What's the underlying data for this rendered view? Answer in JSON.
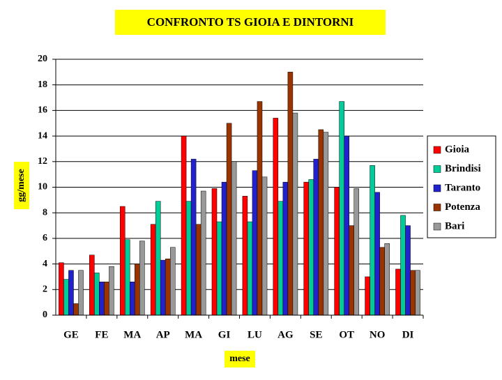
{
  "chart_data": {
    "type": "bar",
    "title": "CONFRONTO  TS  GIOIA  E  DINTORNI",
    "xlabel": "mese",
    "ylabel": "gg/mese",
    "categories": [
      "GE",
      "FE",
      "MA",
      "AP",
      "MA",
      "GI",
      "LU",
      "AG",
      "SE",
      "OT",
      "NO",
      "DI"
    ],
    "series": [
      {
        "name": "Gioia",
        "color": "#ff0000",
        "values": [
          4.1,
          4.7,
          8.5,
          7.1,
          14.0,
          9.9,
          9.3,
          15.4,
          10.4,
          10.0,
          3.0,
          3.6
        ]
      },
      {
        "name": "Brindisi",
        "color": "#00cc99",
        "values": [
          2.8,
          3.3,
          5.9,
          8.9,
          8.9,
          7.3,
          7.3,
          8.9,
          10.6,
          16.7,
          11.7,
          7.8
        ]
      },
      {
        "name": "Taranto",
        "color": "#2222cc",
        "values": [
          3.5,
          2.6,
          2.6,
          4.3,
          12.2,
          10.4,
          11.3,
          10.4,
          12.2,
          14.0,
          9.6,
          7.0
        ]
      },
      {
        "name": "Potenza",
        "color": "#993300",
        "values": [
          0.9,
          2.6,
          4.0,
          4.4,
          7.1,
          15.0,
          16.7,
          19.0,
          14.5,
          7.0,
          5.3,
          3.5
        ]
      },
      {
        "name": "Bari",
        "color": "#999999",
        "values": [
          3.5,
          3.8,
          5.8,
          5.3,
          9.7,
          12.0,
          10.8,
          15.8,
          14.3,
          9.9,
          5.6,
          3.5
        ]
      }
    ],
    "ylim": [
      0,
      20
    ],
    "yticks": [
      0,
      2,
      4,
      6,
      8,
      10,
      12,
      14,
      16,
      18,
      20
    ],
    "grid": true,
    "legend": "right"
  }
}
